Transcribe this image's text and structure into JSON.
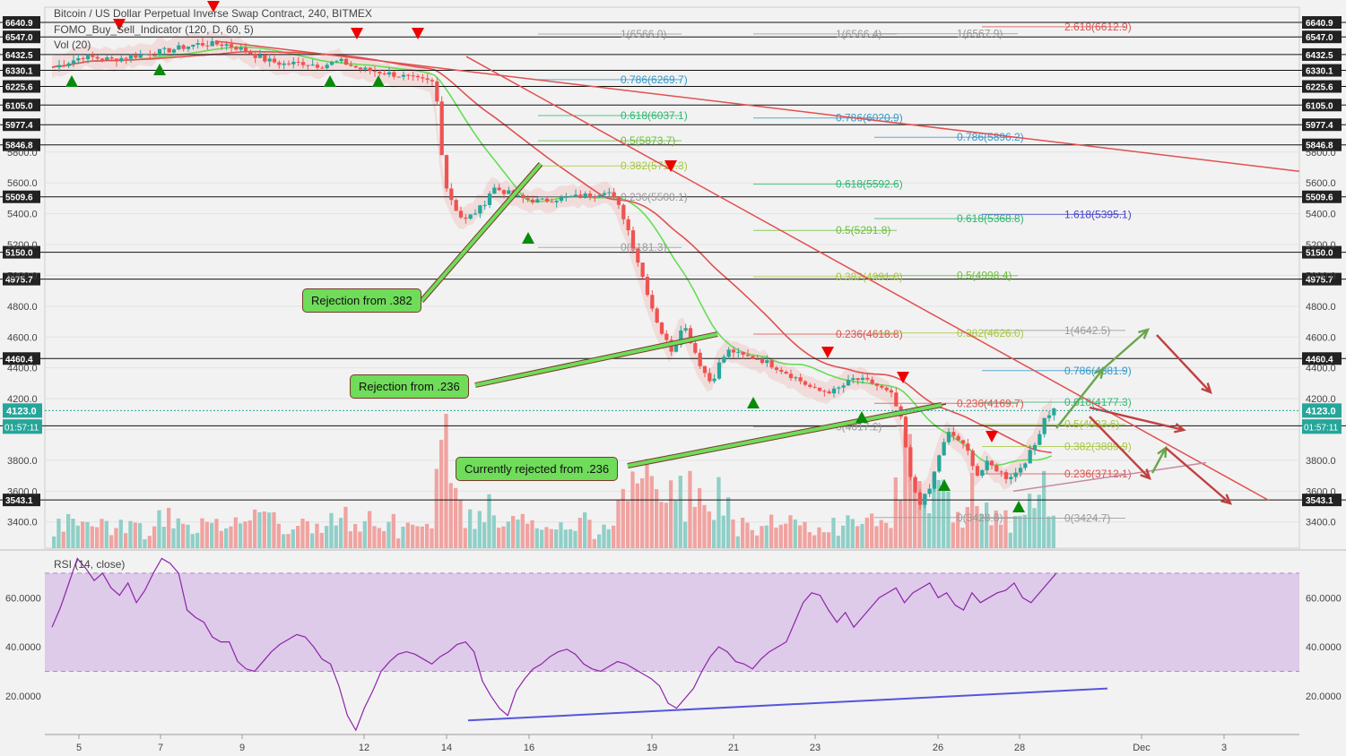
{
  "header": {
    "title": "Bitcoin / US Dollar Perpetual Inverse Swap Contract, 240, BITMEX",
    "indicator": "FOMO_Buy_Sell_Indicator (120, D, 60, 5)",
    "volume": "Vol (20)",
    "rsi_label": "RSI (14, close)"
  },
  "colors": {
    "background": "#f2f2f2",
    "up_candle": "#26a69a",
    "down_candle": "#ef5350",
    "fib": "#2e8b57",
    "rsi": "#8e24aa",
    "rsi_band": "#d5b9e6",
    "trendline": "#e25050",
    "rsi_support": "#5555dd",
    "callout_bg": "#6fdc5a"
  },
  "callouts": [
    {
      "text": "Rejection from .382"
    },
    {
      "text": "Rejection from .236"
    },
    {
      "text": "Currently rejected from .236"
    }
  ],
  "chart_data": {
    "type": "candlestick",
    "title": "Bitcoin / US Dollar Perpetual Inverse Swap Contract, 240, BITMEX",
    "x_ticks": [
      "5",
      "7",
      "9",
      "12",
      "14",
      "16",
      "19",
      "21",
      "23",
      "26",
      "28",
      "Dec",
      "3"
    ],
    "y_range": [
      3230,
      6740
    ],
    "y_ticks": [
      "3400.0",
      "3600.0",
      "3800.0",
      "4000.0",
      "4200.0",
      "4400.0",
      "4600.0",
      "4800.0",
      "5000.0",
      "5200.0",
      "5400.0",
      "5600.0",
      "5800.0"
    ],
    "current_price": "4123.0",
    "countdown": "01:57:11",
    "horizontal_levels": [
      "6640.9",
      "6547.0",
      "6432.5",
      "6330.1",
      "6225.6",
      "6105.0",
      "5977.4",
      "5846.8",
      "5509.6",
      "5150.0",
      "4975.7",
      "4460.4",
      "4024.3",
      "3543.1"
    ],
    "fib_labels": [
      {
        "text": "1(6566.0)",
        "value": 6566.0
      },
      {
        "text": "1(6566.4)",
        "value": 6566.4
      },
      {
        "text": "1(6567.9)",
        "value": 6567.9
      },
      {
        "text": "2.618(6612.9)",
        "value": 6612.9
      },
      {
        "text": "0.786(6269.7)",
        "value": 6269.7
      },
      {
        "text": "0.618(6037.1)",
        "value": 6037.1
      },
      {
        "text": "0.786(6020.9)",
        "value": 6020.9
      },
      {
        "text": "0.5(5873.7)",
        "value": 5873.7
      },
      {
        "text": "0.786(5896.2)",
        "value": 5896.2
      },
      {
        "text": "0.382(5710.3)",
        "value": 5710.3
      },
      {
        "text": "0.618(5592.6)",
        "value": 5592.6
      },
      {
        "text": "0.236(5508.1)",
        "value": 5508.1
      },
      {
        "text": "1.618(5395.1)",
        "value": 5395.1
      },
      {
        "text": "0.618(5368.8)",
        "value": 5368.8
      },
      {
        "text": "0.5(5291.8)",
        "value": 5291.8
      },
      {
        "text": "0(5181.3)",
        "value": 5181.3
      },
      {
        "text": "0.382(4991.0)",
        "value": 4991.0
      },
      {
        "text": "0.5(4998.4)",
        "value": 4998.4
      },
      {
        "text": "1(4642.5)",
        "value": 4642.5
      },
      {
        "text": "0.236(4618.8)",
        "value": 4618.8
      },
      {
        "text": "0.382(4626.0)",
        "value": 4626.0
      },
      {
        "text": "0.786(4381.9)",
        "value": 4381.9
      },
      {
        "text": "0.618(4177.3)",
        "value": 4177.3
      },
      {
        "text": "0.236(4169.7)",
        "value": 4169.7
      },
      {
        "text": "0.5(4033.6)",
        "value": 4033.6
      },
      {
        "text": "0(4017.2)",
        "value": 4017.2
      },
      {
        "text": "0.382(3889.9)",
        "value": 3889.9
      },
      {
        "text": "0.236(3712.1)",
        "value": 3712.1
      },
      {
        "text": "0(3428.8)",
        "value": 3428.8
      },
      {
        "text": "0(3424.7)",
        "value": 3424.7
      }
    ],
    "price_path": [
      [
        0,
        6350
      ],
      [
        3,
        6420
      ],
      [
        6,
        6400
      ],
      [
        9,
        6430
      ],
      [
        12,
        6460
      ],
      [
        15,
        6500
      ],
      [
        18,
        6500
      ],
      [
        20,
        6460
      ],
      [
        22,
        6400
      ],
      [
        24,
        6370
      ],
      [
        26,
        6380
      ],
      [
        28,
        6360
      ],
      [
        30,
        6390
      ],
      [
        32,
        6340
      ],
      [
        34,
        6320
      ],
      [
        36,
        6300
      ],
      [
        38,
        6270
      ],
      [
        40,
        6250
      ],
      [
        41,
        5600
      ],
      [
        42,
        5450
      ],
      [
        43,
        5350
      ],
      [
        45,
        5450
      ],
      [
        46,
        5570
      ],
      [
        47,
        5550
      ],
      [
        49,
        5500
      ],
      [
        51,
        5480
      ],
      [
        53,
        5500
      ],
      [
        55,
        5510
      ],
      [
        57,
        5530
      ],
      [
        58,
        5560
      ],
      [
        59,
        5480
      ],
      [
        60,
        5350
      ],
      [
        61,
        5150
      ],
      [
        62,
        4950
      ],
      [
        63,
        4750
      ],
      [
        64,
        4600
      ],
      [
        65,
        4500
      ],
      [
        66,
        4700
      ],
      [
        67,
        4550
      ],
      [
        68,
        4400
      ],
      [
        69,
        4300
      ],
      [
        70,
        4450
      ],
      [
        71,
        4520
      ],
      [
        72,
        4480
      ],
      [
        74,
        4460
      ],
      [
        76,
        4400
      ],
      [
        78,
        4330
      ],
      [
        80,
        4250
      ],
      [
        82,
        4250
      ],
      [
        84,
        4330
      ],
      [
        86,
        4300
      ],
      [
        88,
        4220
      ],
      [
        89,
        4050
      ],
      [
        90,
        3650
      ],
      [
        91,
        3520
      ],
      [
        92,
        3620
      ],
      [
        93,
        3850
      ],
      [
        94,
        3980
      ],
      [
        95,
        3930
      ],
      [
        96,
        3850
      ],
      [
        97,
        3700
      ],
      [
        98,
        3780
      ],
      [
        99,
        3740
      ],
      [
        100,
        3690
      ],
      [
        101,
        3720
      ],
      [
        102,
        3800
      ],
      [
        103,
        3900
      ],
      [
        104,
        4080
      ],
      [
        105,
        4130
      ]
    ],
    "rsi": {
      "label": "RSI (14, close)",
      "y_ticks": [
        "20.0000",
        "40.0000",
        "60.0000"
      ],
      "band": [
        30,
        70
      ],
      "values": [
        48,
        56,
        66,
        76,
        72,
        67,
        70,
        64,
        61,
        66,
        58,
        63,
        70,
        76,
        74,
        70,
        55,
        52,
        50,
        44,
        42,
        42,
        34,
        31,
        30,
        34,
        38,
        41,
        43,
        45,
        44,
        40,
        35,
        33,
        24,
        12,
        6,
        15,
        22,
        30,
        34,
        37,
        38,
        37,
        35,
        33,
        36,
        38,
        41,
        42,
        38,
        26,
        20,
        15,
        12,
        22,
        27,
        31,
        33,
        36,
        38,
        39,
        37,
        33,
        31,
        30,
        32,
        34,
        33,
        31,
        29,
        27,
        24,
        17,
        15,
        19,
        23,
        30,
        36,
        40,
        38,
        34,
        33,
        31,
        35,
        38,
        40,
        42,
        50,
        58,
        62,
        61,
        55,
        50,
        54,
        48,
        52,
        56,
        60,
        62,
        64,
        58,
        62,
        64,
        66,
        60,
        62,
        57,
        55,
        62,
        58,
        60,
        62,
        63,
        66,
        60,
        58,
        62,
        66,
        70
      ],
      "support_line": [
        [
          5,
          10
        ],
        [
          100,
          23
        ]
      ]
    }
  }
}
